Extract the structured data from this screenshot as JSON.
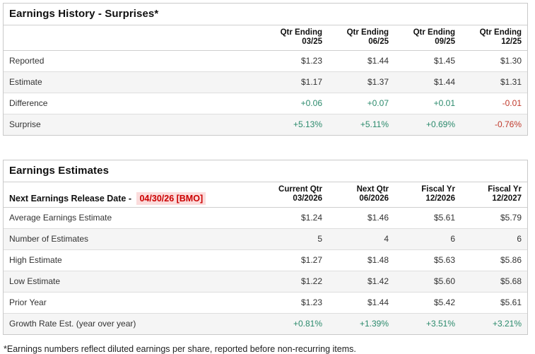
{
  "colors": {
    "positive": "#2b8a6c",
    "negative": "#c0392b",
    "alert_red": "#cc0000",
    "alert_bg": "#fbdcdc",
    "row_stripe": "#f5f5f5"
  },
  "tables": [
    {
      "title": "Earnings History - Surprises*",
      "header_label": "",
      "columns": [
        {
          "line1": "Qtr Ending",
          "line2": "03/25"
        },
        {
          "line1": "Qtr Ending",
          "line2": "06/25"
        },
        {
          "line1": "Qtr Ending",
          "line2": "09/25"
        },
        {
          "line1": "Qtr Ending",
          "line2": "12/25"
        }
      ],
      "rows": [
        {
          "label": "Reported",
          "values": [
            "$1.23",
            "$1.44",
            "$1.45",
            "$1.30"
          ],
          "tones": [
            "",
            "",
            "",
            ""
          ]
        },
        {
          "label": "Estimate",
          "values": [
            "$1.17",
            "$1.37",
            "$1.44",
            "$1.31"
          ],
          "tones": [
            "",
            "",
            "",
            ""
          ]
        },
        {
          "label": "Difference",
          "values": [
            "+0.06",
            "+0.07",
            "+0.01",
            "-0.01"
          ],
          "tones": [
            "pos",
            "pos",
            "pos",
            "neg"
          ]
        },
        {
          "label": "Surprise",
          "values": [
            "+5.13%",
            "+5.11%",
            "+0.69%",
            "-0.76%"
          ],
          "tones": [
            "pos",
            "pos",
            "pos",
            "neg"
          ]
        }
      ]
    },
    {
      "title": "Earnings Estimates",
      "header_label": "Next Earnings Release Date -",
      "header_highlight": "04/30/26 [BMO]",
      "columns": [
        {
          "line1": "Current Qtr",
          "line2": "03/2026"
        },
        {
          "line1": "Next Qtr",
          "line2": "06/2026"
        },
        {
          "line1": "Fiscal Yr",
          "line2": "12/2026"
        },
        {
          "line1": "Fiscal Yr",
          "line2": "12/2027"
        }
      ],
      "rows": [
        {
          "label": "Average Earnings Estimate",
          "values": [
            "$1.24",
            "$1.46",
            "$5.61",
            "$5.79"
          ],
          "tones": [
            "",
            "",
            "",
            ""
          ]
        },
        {
          "label": "Number of Estimates",
          "values": [
            "5",
            "4",
            "6",
            "6"
          ],
          "tones": [
            "",
            "",
            "",
            ""
          ]
        },
        {
          "label": "High Estimate",
          "values": [
            "$1.27",
            "$1.48",
            "$5.63",
            "$5.86"
          ],
          "tones": [
            "",
            "",
            "",
            ""
          ]
        },
        {
          "label": "Low Estimate",
          "values": [
            "$1.22",
            "$1.42",
            "$5.60",
            "$5.68"
          ],
          "tones": [
            "",
            "",
            "",
            ""
          ]
        },
        {
          "label": "Prior Year",
          "values": [
            "$1.23",
            "$1.44",
            "$5.42",
            "$5.61"
          ],
          "tones": [
            "",
            "",
            "",
            ""
          ]
        },
        {
          "label": "Growth Rate Est. (year over year)",
          "values": [
            "+0.81%",
            "+1.39%",
            "+3.51%",
            "+3.21%"
          ],
          "tones": [
            "pos",
            "pos",
            "pos",
            "pos"
          ]
        }
      ]
    }
  ],
  "footnote": "*Earnings numbers reflect diluted earnings per share, reported before non-recurring items."
}
